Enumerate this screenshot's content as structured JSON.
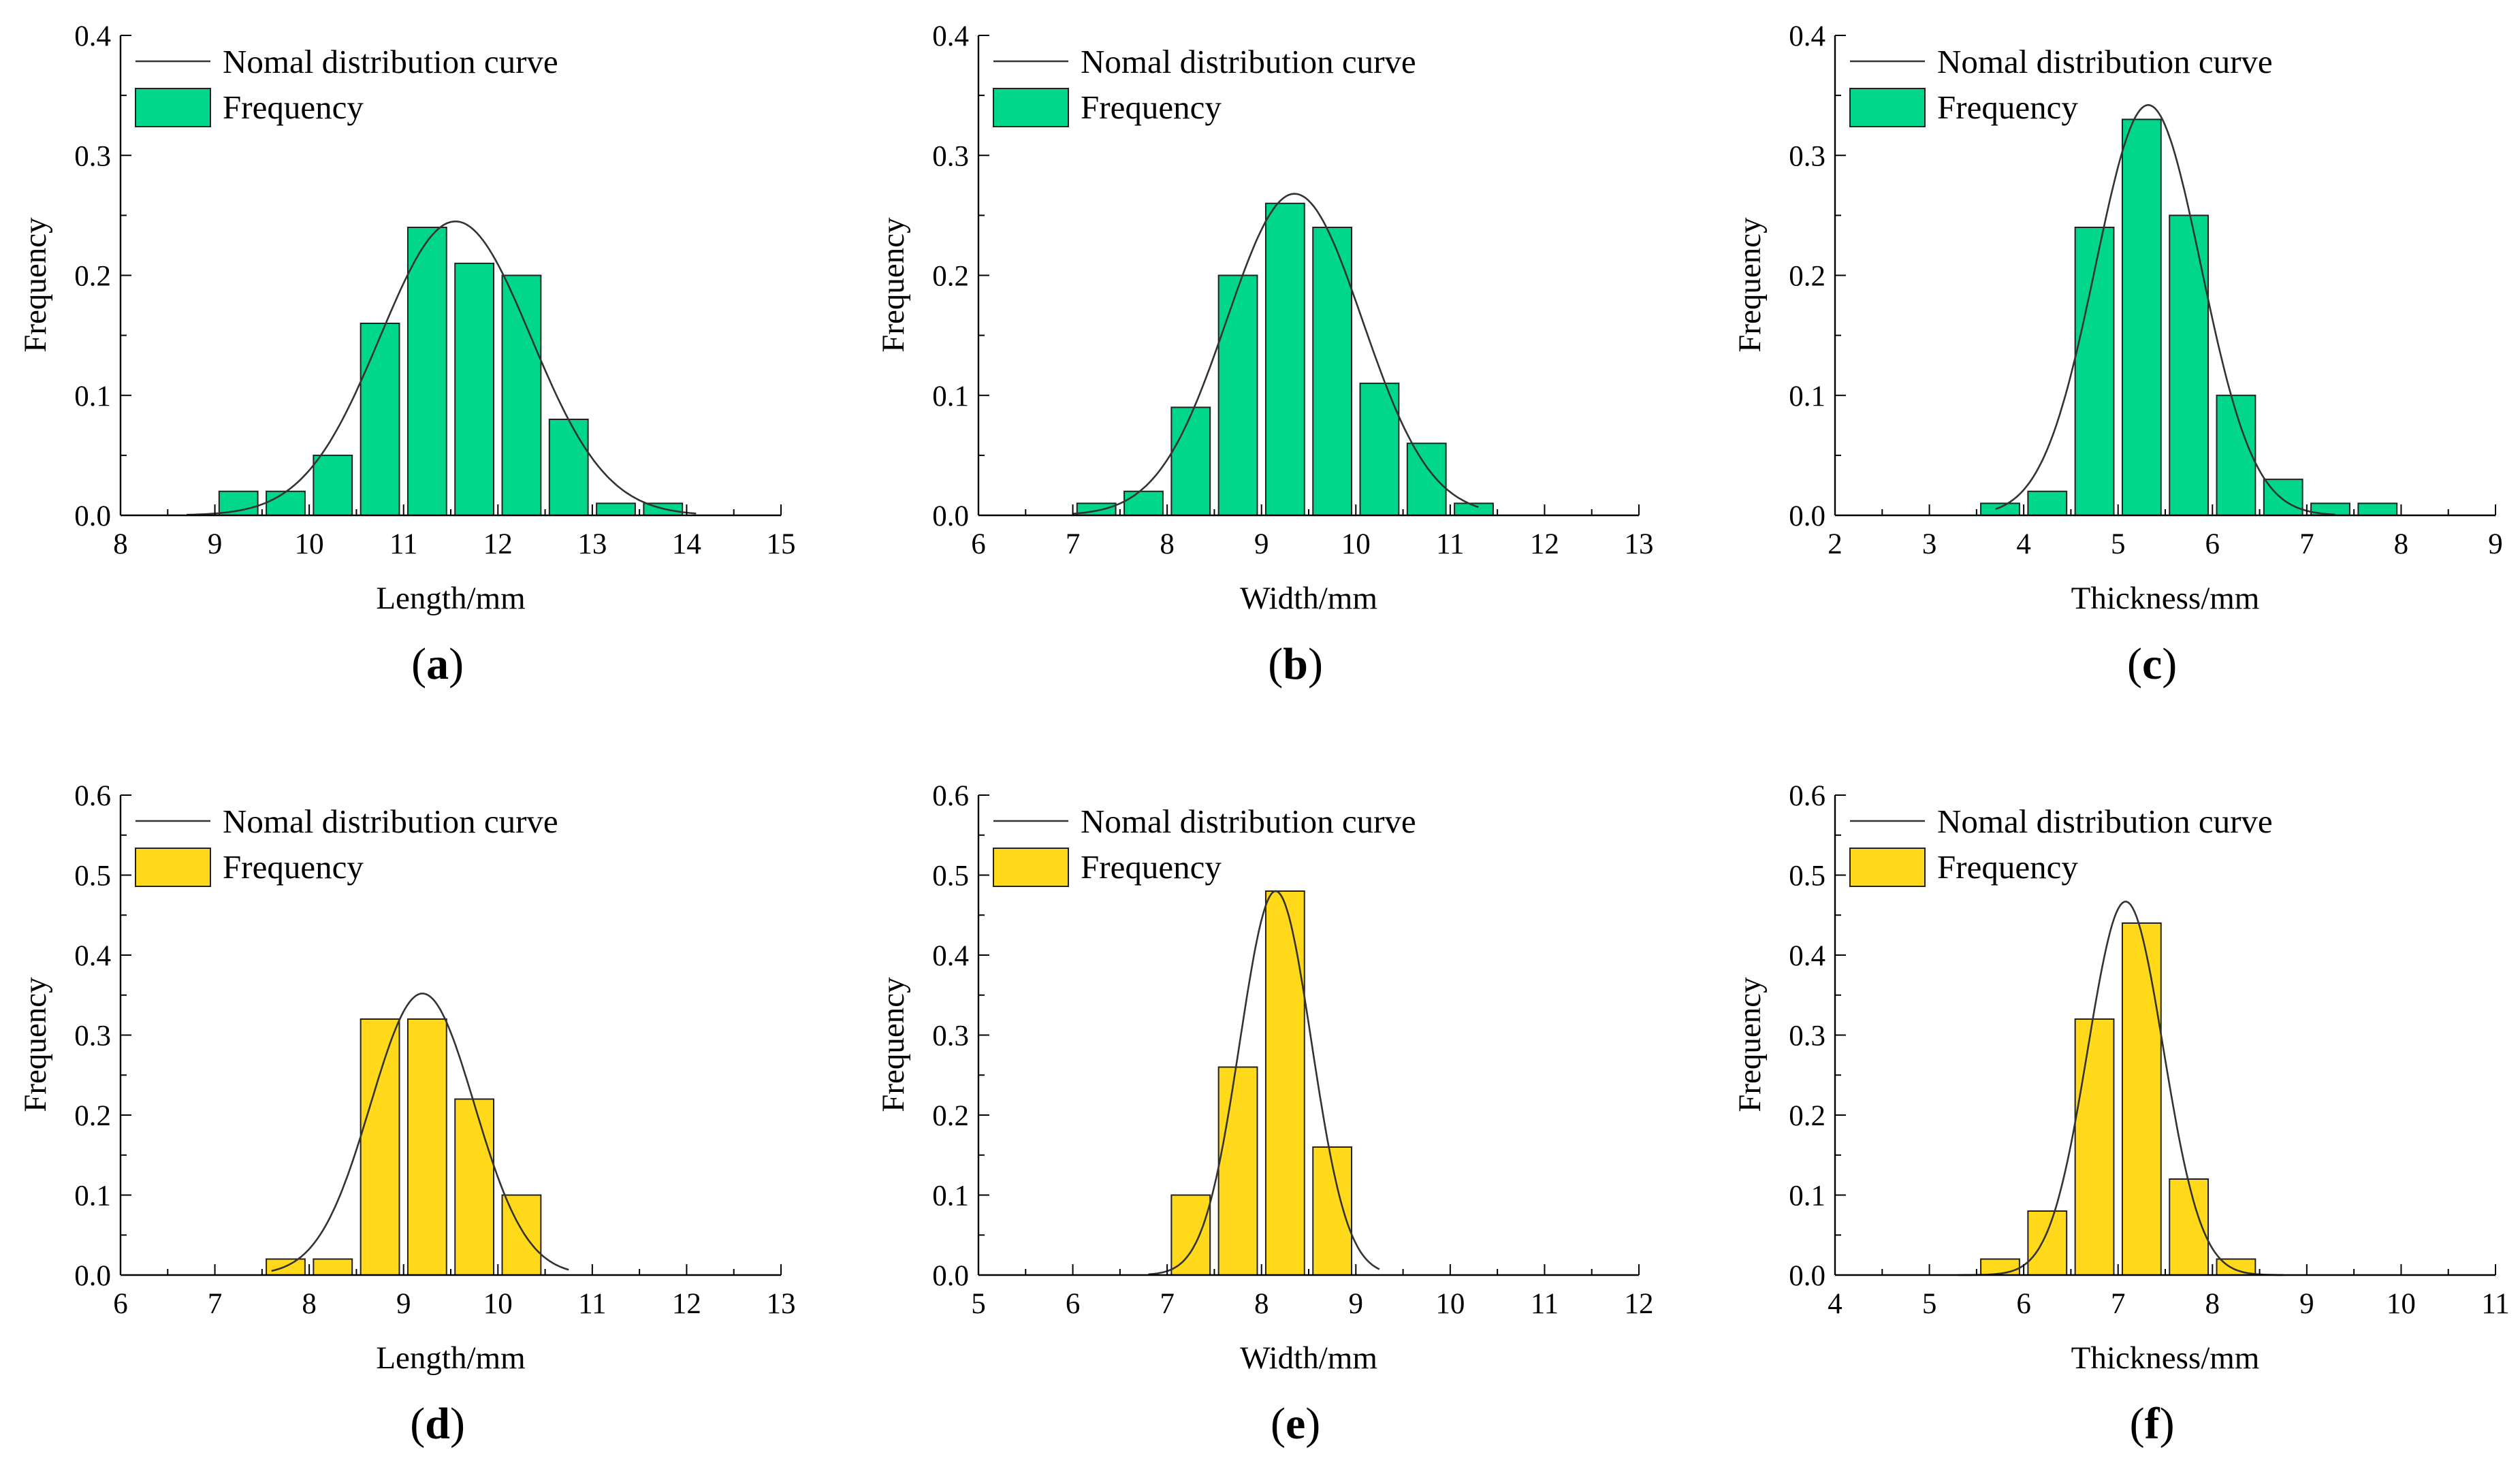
{
  "chart_data": [
    {
      "panel": "a",
      "type": "bar",
      "color": "#00D78A",
      "xlabel": "Length/mm",
      "ylabel": "Frequency",
      "xlim": [
        8,
        15
      ],
      "ylim": [
        0,
        0.4
      ],
      "xticks": [
        "8",
        "9",
        "10",
        "11",
        "12",
        "13",
        "14",
        "15"
      ],
      "yticks": [
        "0.0",
        "0.1",
        "0.2",
        "0.3",
        "0.4"
      ],
      "bin_width": 0.5,
      "bins": [
        9.25,
        9.75,
        10.25,
        10.75,
        11.25,
        11.75,
        12.25,
        12.75,
        13.25,
        13.75
      ],
      "values": [
        0.02,
        0.02,
        0.05,
        0.16,
        0.24,
        0.21,
        0.2,
        0.08,
        0.01,
        0.01
      ],
      "curve": {
        "mean": 11.55,
        "peak": 0.245,
        "sd": 0.8,
        "range": [
          8.7,
          14.1
        ]
      },
      "legend": [
        "Nomal distribution curve",
        "Frequency"
      ]
    },
    {
      "panel": "b",
      "type": "bar",
      "color": "#00D78A",
      "xlabel": "Width/mm",
      "ylabel": "Frequency",
      "xlim": [
        6,
        13
      ],
      "ylim": [
        0,
        0.4
      ],
      "xticks": [
        "6",
        "7",
        "8",
        "9",
        "10",
        "11",
        "12",
        "13"
      ],
      "yticks": [
        "0.0",
        "0.1",
        "0.2",
        "0.3",
        "0.4"
      ],
      "bin_width": 0.5,
      "bins": [
        7.25,
        7.75,
        8.25,
        8.75,
        9.25,
        9.75,
        10.25,
        10.75,
        11.25
      ],
      "values": [
        0.01,
        0.02,
        0.09,
        0.2,
        0.26,
        0.24,
        0.11,
        0.06,
        0.01
      ],
      "curve": {
        "mean": 9.35,
        "peak": 0.268,
        "sd": 0.72,
        "range": [
          7.0,
          11.3
        ]
      },
      "legend": [
        "Nomal distribution curve",
        "Frequency"
      ]
    },
    {
      "panel": "c",
      "type": "bar",
      "color": "#00D78A",
      "xlabel": "Thickness/mm",
      "ylabel": "Frequency",
      "xlim": [
        2,
        9
      ],
      "ylim": [
        0,
        0.4
      ],
      "xticks": [
        "2",
        "3",
        "4",
        "5",
        "6",
        "7",
        "8",
        "9"
      ],
      "yticks": [
        "0.0",
        "0.1",
        "0.2",
        "0.3",
        "0.4"
      ],
      "bin_width": 0.5,
      "bins": [
        3.75,
        4.25,
        4.75,
        5.25,
        5.75,
        6.25,
        6.75,
        7.25,
        7.75
      ],
      "values": [
        0.01,
        0.02,
        0.24,
        0.33,
        0.25,
        0.1,
        0.03,
        0.01,
        0.01
      ],
      "curve": {
        "mean": 5.32,
        "peak": 0.342,
        "sd": 0.56,
        "range": [
          3.7,
          7.3
        ]
      },
      "legend": [
        "Nomal distribution curve",
        "Frequency"
      ]
    },
    {
      "panel": "d",
      "type": "bar",
      "color": "#FFD91A",
      "xlabel": "Length/mm",
      "ylabel": "Frequency",
      "xlim": [
        6,
        13
      ],
      "ylim": [
        0,
        0.6
      ],
      "xticks": [
        "6",
        "7",
        "8",
        "9",
        "10",
        "11",
        "12",
        "13"
      ],
      "yticks": [
        "0.0",
        "0.1",
        "0.2",
        "0.3",
        "0.4",
        "0.5",
        "0.6"
      ],
      "bin_width": 0.5,
      "bins": [
        7.75,
        8.25,
        8.75,
        9.25,
        9.75,
        10.25
      ],
      "values": [
        0.02,
        0.02,
        0.32,
        0.32,
        0.22,
        0.1
      ],
      "curve": {
        "mean": 9.2,
        "peak": 0.352,
        "sd": 0.55,
        "range": [
          7.6,
          10.75
        ]
      },
      "legend": [
        "Nomal distribution curve",
        "Frequency"
      ]
    },
    {
      "panel": "e",
      "type": "bar",
      "color": "#FFD91A",
      "xlabel": "Width/mm",
      "ylabel": "Frequency",
      "xlim": [
        5,
        12
      ],
      "ylim": [
        0,
        0.6
      ],
      "xticks": [
        "5",
        "6",
        "7",
        "8",
        "9",
        "10",
        "11",
        "12"
      ],
      "yticks": [
        "0.0",
        "0.1",
        "0.2",
        "0.3",
        "0.4",
        "0.5",
        "0.6"
      ],
      "bin_width": 0.5,
      "bins": [
        7.25,
        7.75,
        8.25,
        8.75
      ],
      "values": [
        0.1,
        0.26,
        0.48,
        0.16
      ],
      "curve": {
        "mean": 8.15,
        "peak": 0.48,
        "sd": 0.38,
        "range": [
          6.8,
          9.25
        ]
      },
      "legend": [
        "Nomal distribution curve",
        "Frequency"
      ]
    },
    {
      "panel": "f",
      "type": "bar",
      "color": "#FFD91A",
      "xlabel": "Thickness/mm",
      "ylabel": "Frequency",
      "xlim": [
        4,
        11
      ],
      "ylim": [
        0,
        0.6
      ],
      "xticks": [
        "4",
        "5",
        "6",
        "7",
        "8",
        "9",
        "10",
        "11"
      ],
      "yticks": [
        "0.0",
        "0.1",
        "0.2",
        "0.3",
        "0.4",
        "0.5",
        "0.6"
      ],
      "bin_width": 0.5,
      "bins": [
        5.75,
        6.25,
        6.75,
        7.25,
        7.75,
        8.25
      ],
      "values": [
        0.02,
        0.08,
        0.32,
        0.44,
        0.12,
        0.02
      ],
      "curve": {
        "mean": 7.08,
        "peak": 0.467,
        "sd": 0.4,
        "range": [
          5.3,
          8.75
        ]
      },
      "legend": [
        "Nomal distribution curve",
        "Frequency"
      ]
    }
  ]
}
